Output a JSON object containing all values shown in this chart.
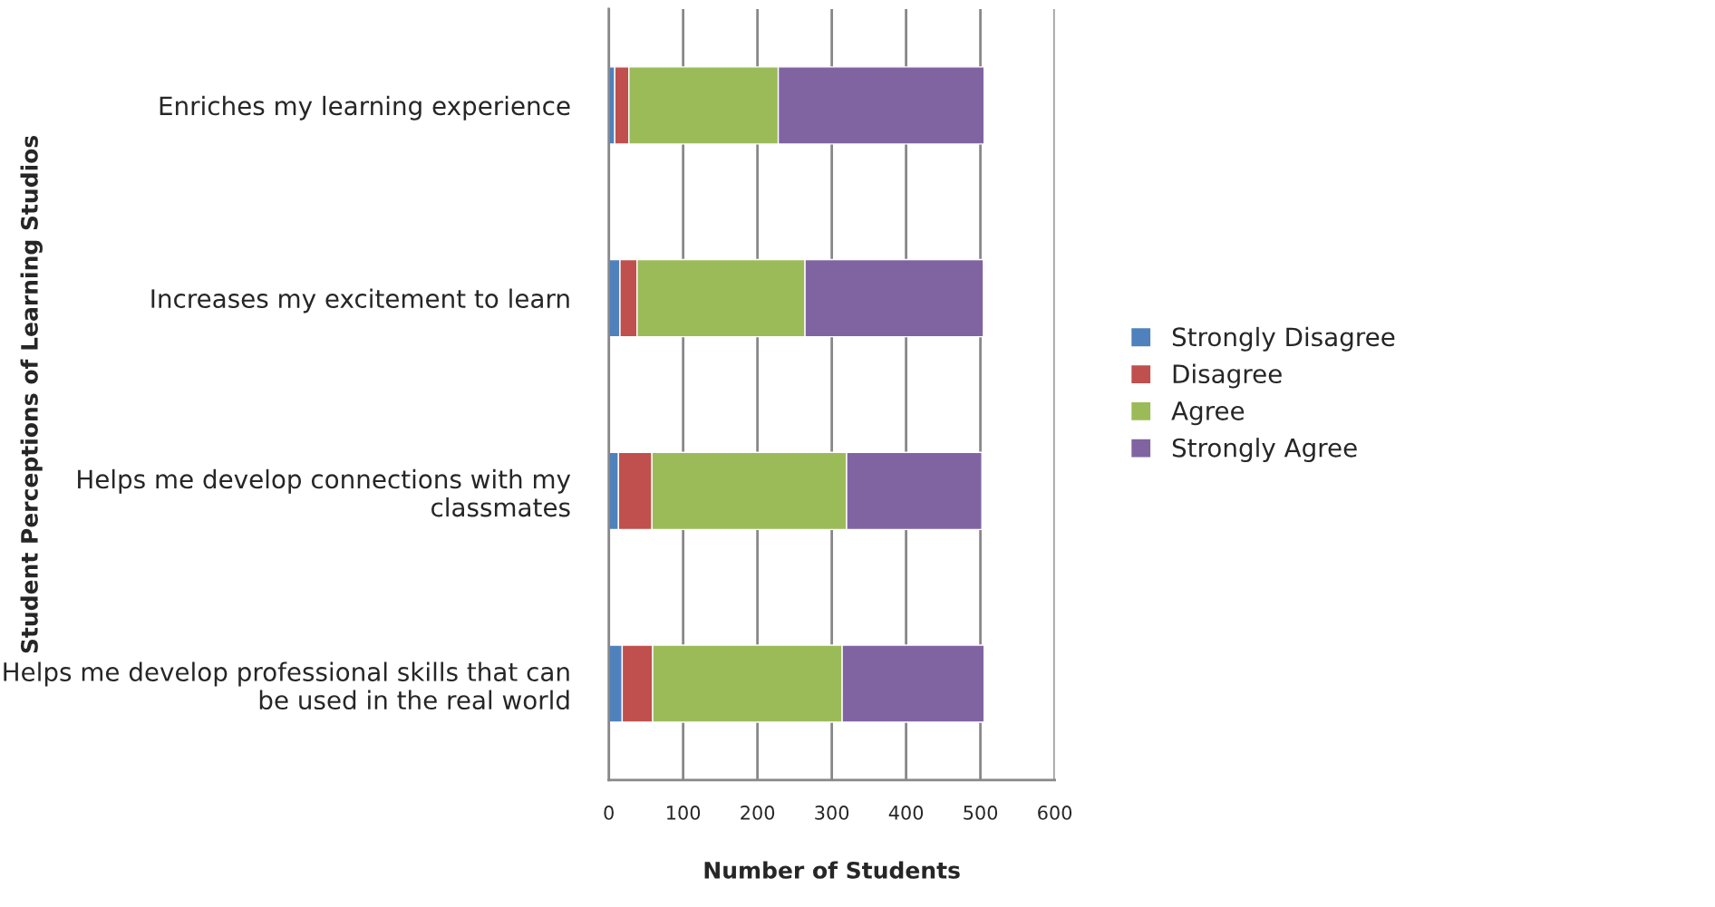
{
  "chart_data": {
    "type": "bar",
    "orientation": "horizontal",
    "stacked": true,
    "xlabel": "Number of Students",
    "ylabel": "Student Perceptions of Learning Studios",
    "categories": [
      "Enriches my learning experience",
      "Increases my excitement to learn",
      "Helps me develop connections with my classmates",
      "Helps me develop professional skills that can be used in the real world"
    ],
    "series": [
      {
        "name": "Strongly Disagree",
        "color": "#4f81bd",
        "values": [
          8,
          15,
          13,
          18
        ]
      },
      {
        "name": "Disagree",
        "color": "#c0504d",
        "values": [
          19,
          23,
          45,
          41
        ]
      },
      {
        "name": "Agree",
        "color": "#9bbb59",
        "values": [
          201,
          226,
          262,
          255
        ]
      },
      {
        "name": "Strongly Agree",
        "color": "#8064a2",
        "values": [
          277,
          240,
          182,
          191
        ]
      }
    ],
    "xlim": [
      0,
      600
    ],
    "xticks": [
      0,
      100,
      200,
      300,
      400,
      500,
      600
    ],
    "grid": "x",
    "legend": "right"
  }
}
